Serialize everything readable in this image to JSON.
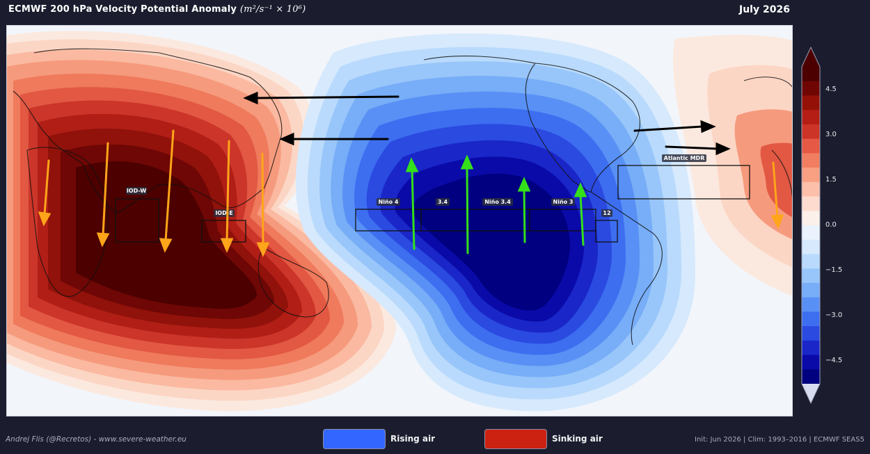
{
  "header": {
    "title": "ECMWF 200 hPa Velocity Potential Anomaly",
    "units": "(m²/s⁻¹ × 10⁶)",
    "date": "July 2026"
  },
  "map": {
    "regions": {
      "iod_w": "IOD-W",
      "iod_e": "IOD-E",
      "nino4": "Niño 4",
      "n34_short": "3.4",
      "nino34": "Niño 3.4",
      "nino3": "Niño 3",
      "nino12": "12",
      "atlantic_mdr": "Atlantic MDR"
    },
    "arrow_colors": {
      "sinking": "#ffa51a",
      "rising": "#33e01a",
      "flow": "#000000"
    }
  },
  "colorbar": {
    "ticks": [
      "4.5",
      "3.0",
      "1.5",
      "0.0",
      "−1.5",
      "−3.0",
      "−4.5"
    ],
    "vmin": -5.25,
    "vmax": 5.25,
    "colors": [
      "#000080",
      "#0a0aa8",
      "#1a26c8",
      "#2a4ae0",
      "#3d6ef0",
      "#5890f5",
      "#78adf7",
      "#98c6fa",
      "#b9dafc",
      "#d6e9fd",
      "#eaf3fd",
      "#fbf0ea",
      "#fddccf",
      "#fcbfa9",
      "#f9a083",
      "#f27e61",
      "#e55945",
      "#cd3428",
      "#b41e15",
      "#951108",
      "#700603",
      "#4c0000"
    ]
  },
  "legend": {
    "rising": {
      "label": "Rising air",
      "color": "#3366ff"
    },
    "sinking": {
      "label": "Sinking air",
      "color": "#cc2211"
    }
  },
  "footer": {
    "credit": "Andrej Flis (@Recretos) - www.severe-weather.eu",
    "info": "Init: Jun 2026  |  Clim: 1993–2016  |  ECMWF SEAS5"
  }
}
